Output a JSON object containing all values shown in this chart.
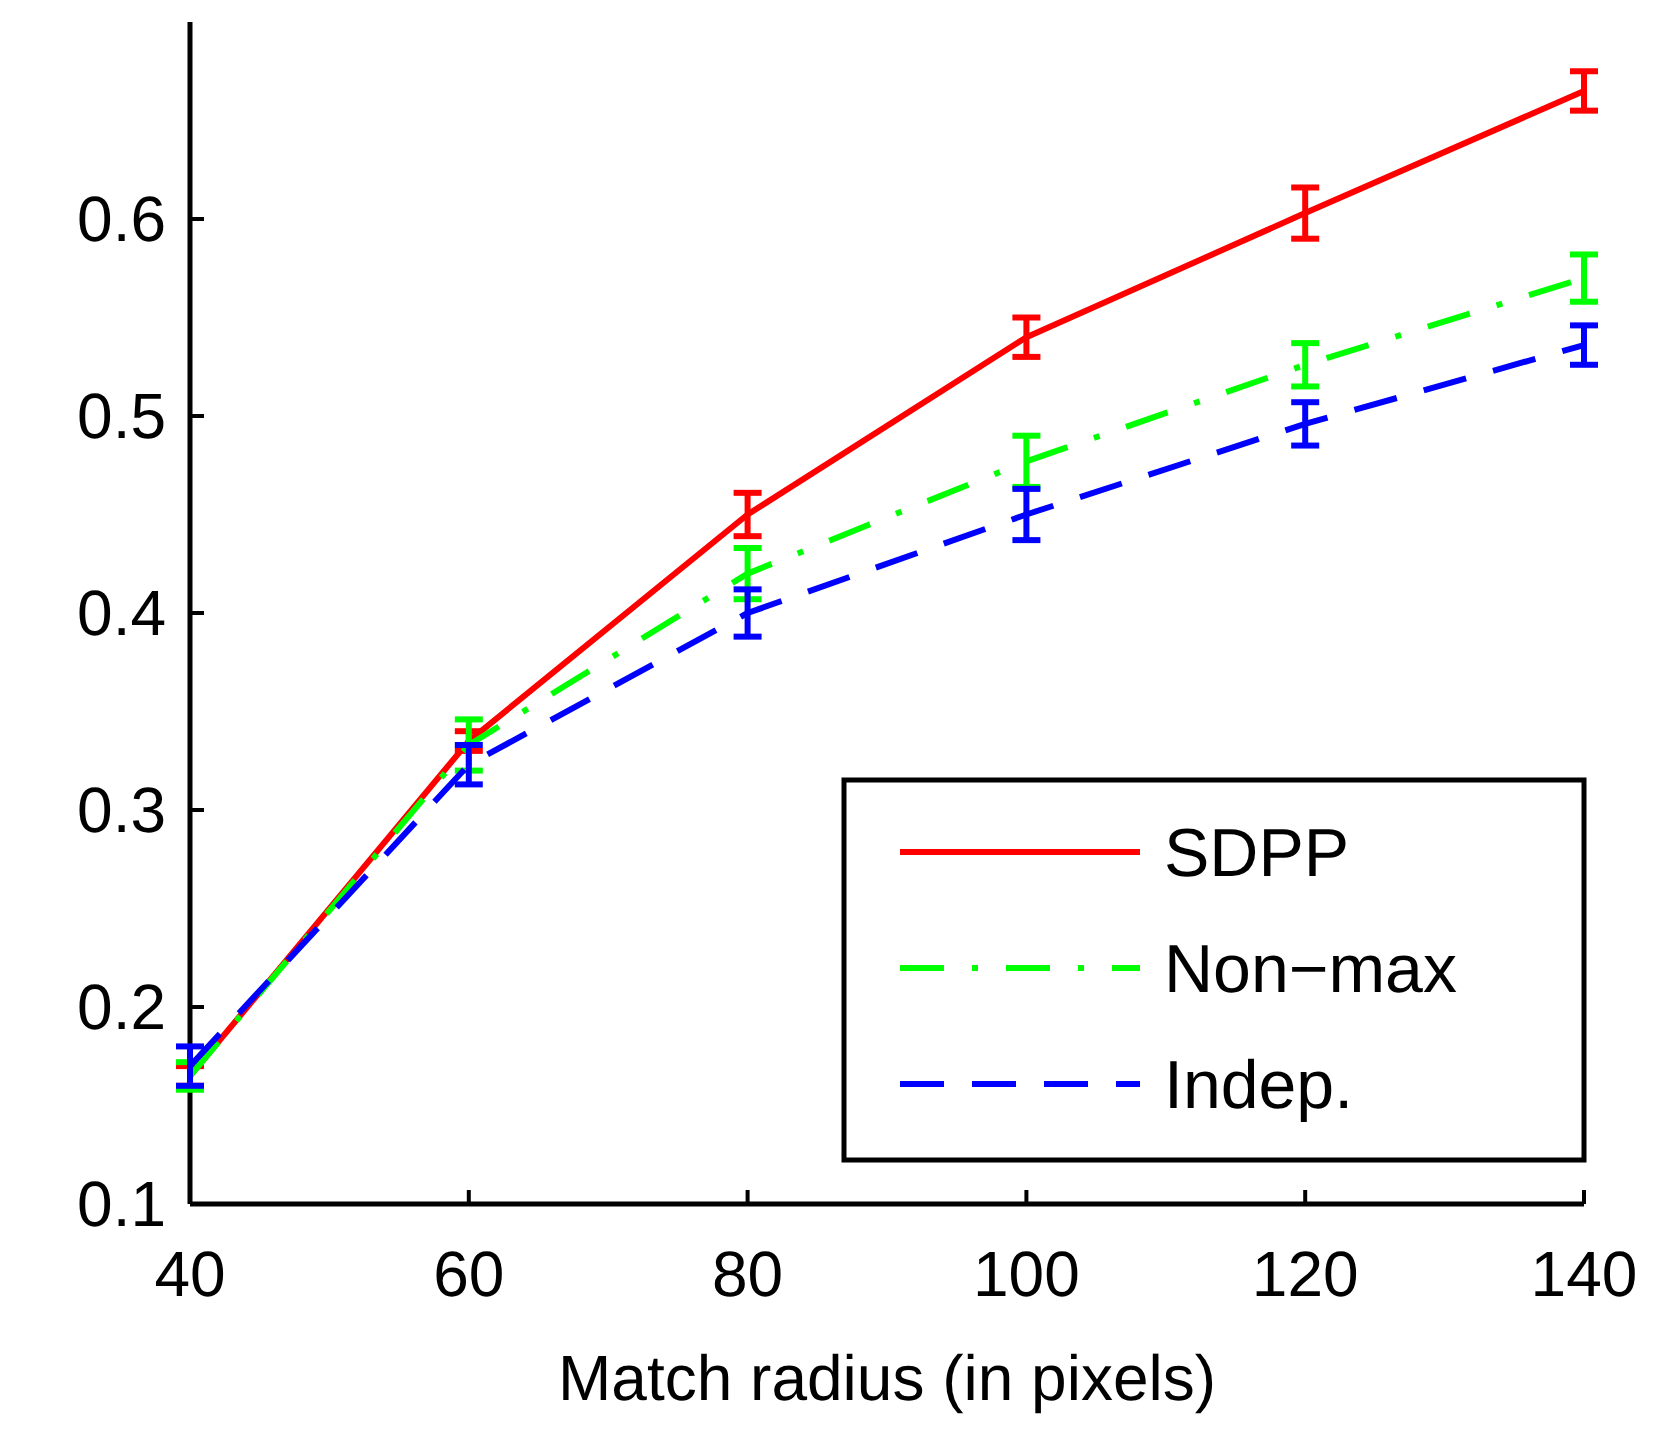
{
  "chart_data": {
    "type": "line",
    "xlabel": "Match radius (in pixels)",
    "x": [
      40,
      60,
      80,
      100,
      120,
      140
    ],
    "xlim": [
      40,
      140
    ],
    "xticks": [
      40,
      60,
      80,
      100,
      120,
      140
    ],
    "ylim": [
      0.1,
      0.7
    ],
    "yticks": [
      0.1,
      0.2,
      0.3,
      0.4,
      0.5,
      0.6
    ],
    "series": [
      {
        "name": "SDPP",
        "color": "#ff0000",
        "line_style": "solid",
        "values": [
          0.165,
          0.335,
          0.45,
          0.54,
          0.603,
          0.665
        ],
        "errors": [
          0.005,
          0.005,
          0.011,
          0.01,
          0.013,
          0.01
        ]
      },
      {
        "name": "Non−max",
        "color": "#00ff00",
        "line_style": "dashdot",
        "values": [
          0.165,
          0.333,
          0.42,
          0.477,
          0.526,
          0.57
        ],
        "errors": [
          0.007,
          0.013,
          0.013,
          0.013,
          0.011,
          0.012
        ]
      },
      {
        "name": "Indep.",
        "color": "#0000ff",
        "line_style": "dashed",
        "values": [
          0.17,
          0.323,
          0.4,
          0.45,
          0.496,
          0.536
        ],
        "errors": [
          0.01,
          0.01,
          0.012,
          0.013,
          0.011,
          0.01
        ]
      }
    ],
    "legend": "bottom right",
    "grid": false,
    "marker": "none"
  }
}
